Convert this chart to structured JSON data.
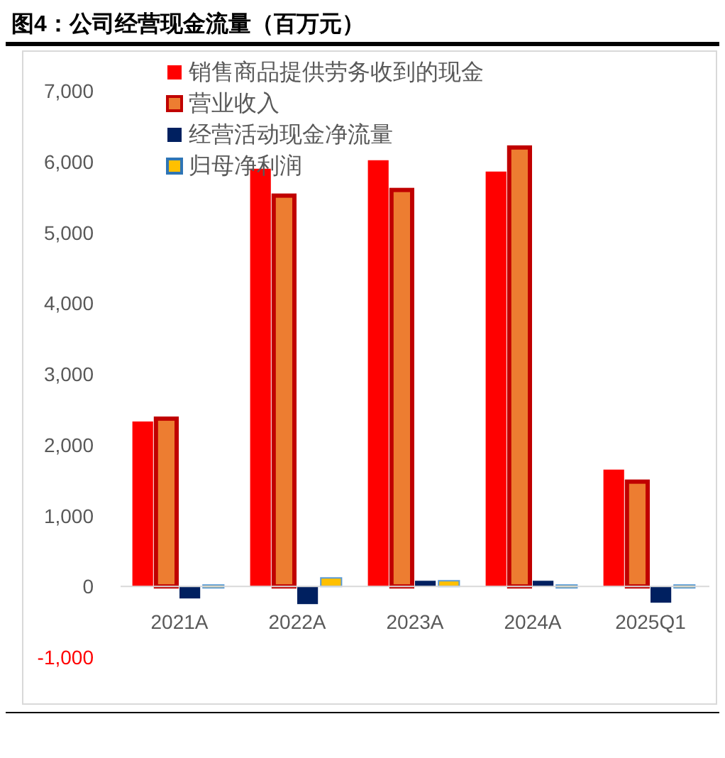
{
  "chart_data": {
    "type": "bar",
    "title": "图4：公司经营现金流量（百万元）",
    "categories": [
      "2021A",
      "2022A",
      "2023A",
      "2024A",
      "2025Q1"
    ],
    "series": [
      {
        "name": "销售商品提供劳务收到的现金",
        "color": "#ff0000",
        "values": [
          2330,
          5900,
          6020,
          5860,
          1650
        ]
      },
      {
        "name": "营业收入",
        "color": "#ed7d31",
        "values": [
          2370,
          5520,
          5600,
          6200,
          1480
        ]
      },
      {
        "name": "经营活动现金净流量",
        "color": "#002060",
        "values": [
          -170,
          -250,
          80,
          80,
          -230
        ]
      },
      {
        "name": "归母净利润",
        "color": "#ffc000",
        "values": [
          20,
          120,
          80,
          20,
          20
        ]
      }
    ],
    "ylim": [
      -1000,
      7000
    ],
    "yticks": [
      {
        "value": -1000,
        "label": "-1,000"
      },
      0,
      {
        "value": 1000,
        "label": "1,000"
      },
      {
        "value": 2000,
        "label": "2,000"
      },
      {
        "value": 3000,
        "label": "3,000"
      },
      {
        "value": 4000,
        "label": "4,000"
      },
      {
        "value": 5000,
        "label": "5,000"
      },
      {
        "value": 6000,
        "label": "6,000"
      },
      {
        "value": 7000,
        "label": "7,000"
      }
    ],
    "grid": false,
    "legend": "top left"
  }
}
